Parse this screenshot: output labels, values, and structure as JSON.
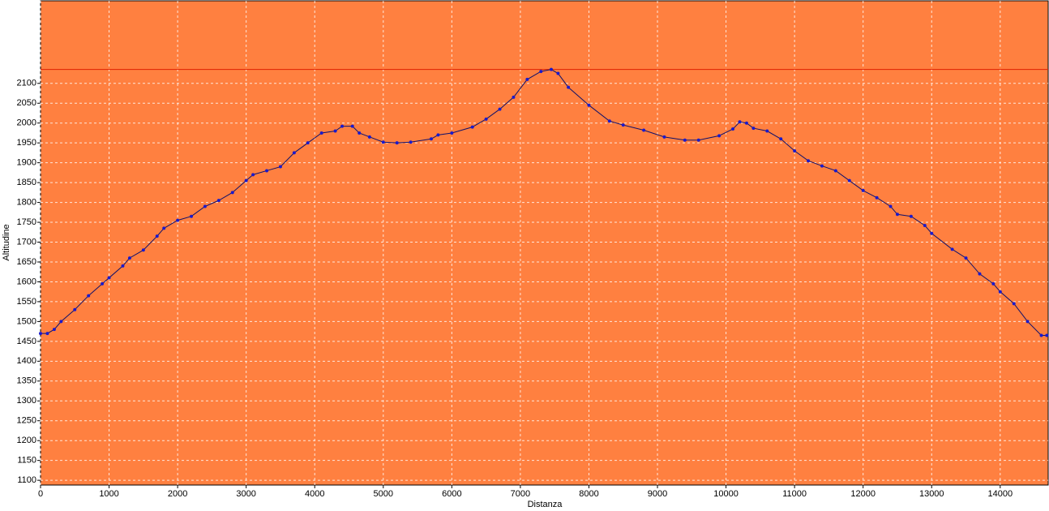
{
  "chart_data": {
    "type": "line",
    "x_label": "Distanza",
    "y_label": "Altitudine",
    "x": [
      0,
      100,
      200,
      300,
      500,
      700,
      900,
      1000,
      1200,
      1300,
      1500,
      1700,
      1800,
      2000,
      2200,
      2400,
      2600,
      2800,
      3000,
      3100,
      3300,
      3500,
      3700,
      3900,
      4100,
      4300,
      4400,
      4550,
      4650,
      4800,
      5000,
      5200,
      5400,
      5700,
      5800,
      6000,
      6300,
      6500,
      6700,
      6900,
      7100,
      7300,
      7450,
      7550,
      7700,
      8000,
      8300,
      8500,
      8800,
      9100,
      9400,
      9600,
      9900,
      10100,
      10200,
      10300,
      10400,
      10600,
      10800,
      11000,
      11200,
      11400,
      11600,
      11800,
      12000,
      12200,
      12400,
      12500,
      12700,
      12900,
      13000,
      13300,
      13500,
      13700,
      13900,
      14000,
      14200,
      14400,
      14600,
      14680
    ],
    "series": [
      {
        "color": "#1a1acc",
        "line_color": "#10106a",
        "values": [
          1470,
          1470,
          1480,
          1500,
          1530,
          1565,
          1595,
          1610,
          1640,
          1660,
          1680,
          1715,
          1735,
          1755,
          1765,
          1790,
          1805,
          1825,
          1855,
          1870,
          1880,
          1890,
          1925,
          1950,
          1975,
          1980,
          1992,
          1992,
          1975,
          1965,
          1952,
          1950,
          1952,
          1960,
          1970,
          1975,
          1990,
          2010,
          2035,
          2065,
          2110,
          2130,
          2135,
          2125,
          2090,
          2045,
          2005,
          1995,
          1982,
          1965,
          1957,
          1957,
          1968,
          1985,
          2003,
          2000,
          1987,
          1980,
          1960,
          1930,
          1905,
          1892,
          1880,
          1855,
          1830,
          1812,
          1790,
          1770,
          1765,
          1742,
          1722,
          1682,
          1660,
          1620,
          1595,
          1575,
          1545,
          1500,
          1465,
          1465
        ]
      }
    ],
    "xlim": [
      0,
      14700
    ],
    "ylim": [
      1088,
      2308
    ],
    "xticks": [
      0,
      1000,
      2000,
      3000,
      4000,
      5000,
      6000,
      7000,
      8000,
      9000,
      10000,
      11000,
      12000,
      13000,
      14000
    ],
    "yticks": [
      1100,
      1150,
      1200,
      1250,
      1300,
      1350,
      1400,
      1450,
      1500,
      1550,
      1600,
      1650,
      1700,
      1750,
      1800,
      1850,
      1900,
      1950,
      2000,
      2050,
      2100
    ],
    "reference_line": 2135,
    "reference_color": "#e02000",
    "background": "#ff8040",
    "grid": true
  }
}
